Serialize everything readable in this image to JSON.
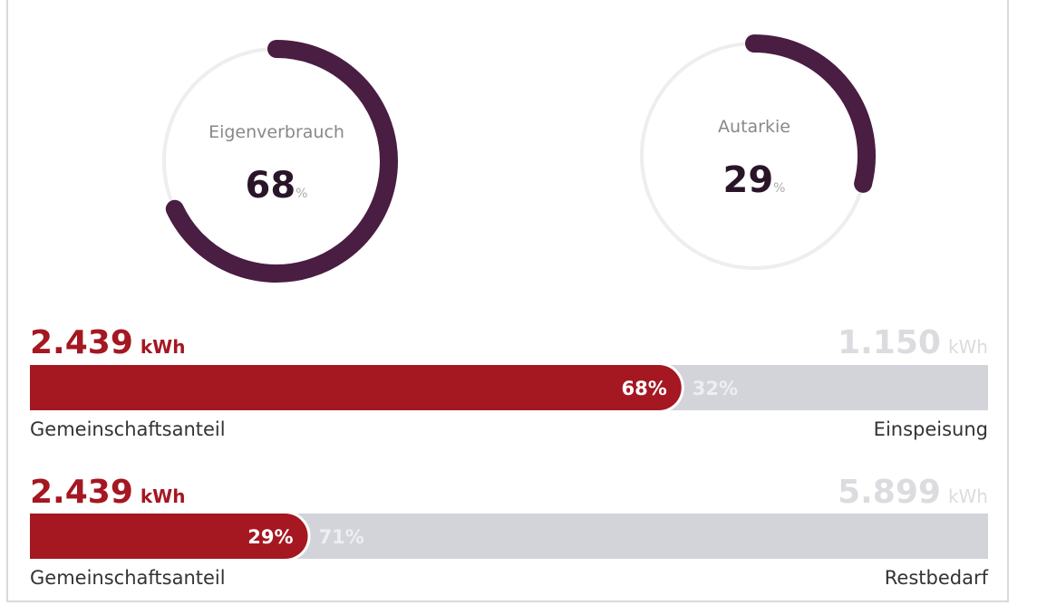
{
  "gauges": [
    {
      "label": "Eigenverbrauch",
      "value": 68,
      "unit": "%"
    },
    {
      "label": "Autarkie",
      "value": 29,
      "unit": "%"
    }
  ],
  "bars": [
    {
      "left": {
        "amount": 2439,
        "amount_label": "2.439",
        "unit": "kWh",
        "label": "Gemeinschaftsanteil",
        "percent": 68,
        "percent_label": "68%"
      },
      "right": {
        "amount": 1150,
        "amount_label": "1.150",
        "unit": "kWh",
        "label": "Einspeisung",
        "percent": 32,
        "percent_label": "32%"
      }
    },
    {
      "left": {
        "amount": 2439,
        "amount_label": "2.439",
        "unit": "kWh",
        "label": "Gemeinschaftsanteil",
        "percent": 29,
        "percent_label": "29%"
      },
      "right": {
        "amount": 5899,
        "amount_label": "5.899",
        "unit": "kWh",
        "label": "Restbedarf",
        "percent": 71,
        "percent_label": "71%"
      }
    }
  ]
}
